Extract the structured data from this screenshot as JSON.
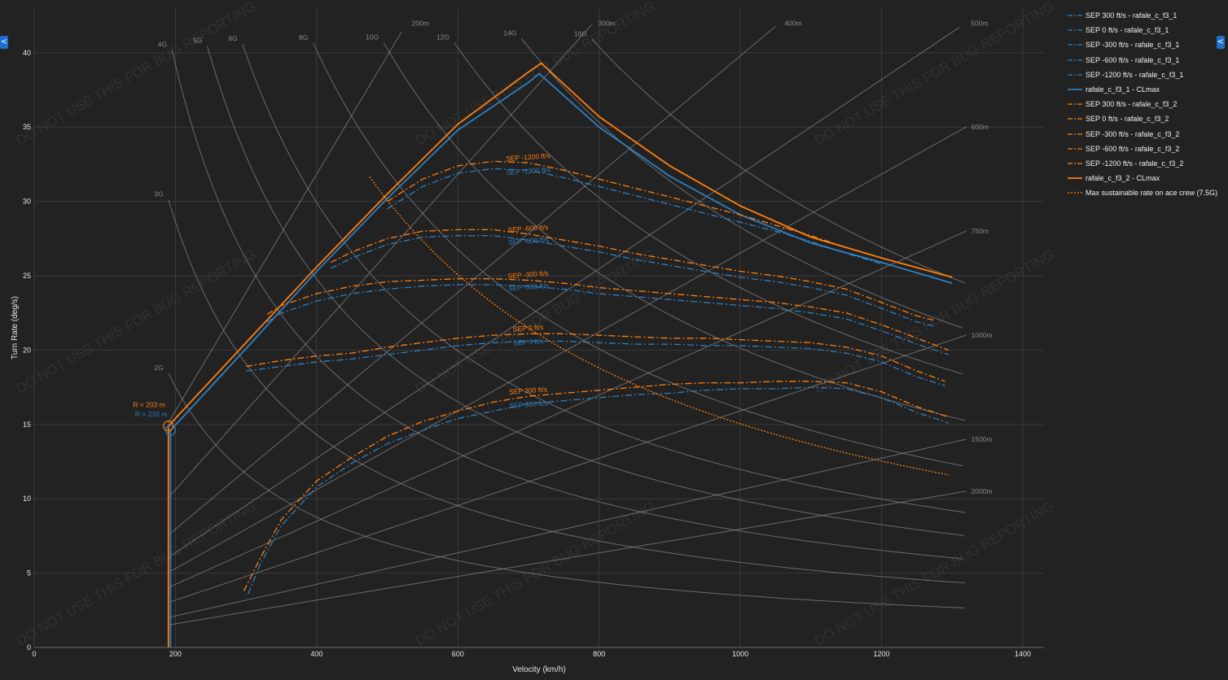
{
  "ui": {
    "left_collapse_glyph": "<",
    "right_collapse_glyph": "<",
    "left_collapse_icon": "chevron-left-icon",
    "right_collapse_icon": "chevron-left-icon",
    "watermark": "DO NOT USE THIS FOR BUG REPORTING"
  },
  "colors": {
    "background": "#222222",
    "grid": "#3a3a3a",
    "axis_text": "#e6e6e6",
    "reference": "#8a8a8a",
    "f3_1": "#2f7fc0",
    "f3_2": "#ff7f0e",
    "watermark": "rgba(255,255,255,0.07)"
  },
  "chart_data": {
    "type": "line",
    "xlabel": "Velocity (km/h)",
    "ylabel": "Turn Rate (deg/s)",
    "xlim": [
      0,
      1430
    ],
    "ylim": [
      0,
      43
    ],
    "xticks": [
      0,
      200,
      400,
      600,
      800,
      1000,
      1200,
      1400
    ],
    "yticks": [
      0,
      5,
      10,
      15,
      20,
      25,
      30,
      35,
      40
    ],
    "grid": true,
    "legend_position": "right",
    "g_lines": [
      {
        "label": "2G",
        "g": 2
      },
      {
        "label": "3G",
        "g": 3
      },
      {
        "label": "4G",
        "g": 4
      },
      {
        "label": "5G",
        "g": 5
      },
      {
        "label": "6G",
        "g": 6
      },
      {
        "label": "8G",
        "g": 8
      },
      {
        "label": "10G",
        "g": 10
      },
      {
        "label": "12G",
        "g": 12
      },
      {
        "label": "14G",
        "g": 14
      },
      {
        "label": "16G",
        "g": 16
      }
    ],
    "radius_lines": [
      {
        "label": "200m",
        "r": 200
      },
      {
        "label": "300m",
        "r": 300
      },
      {
        "label": "400m",
        "r": 400
      },
      {
        "label": "500m",
        "r": 500
      },
      {
        "label": "600m",
        "r": 600
      },
      {
        "label": "750m",
        "r": 750
      },
      {
        "label": "1000m",
        "r": 1000
      },
      {
        "label": "1500m",
        "r": 1500
      },
      {
        "label": "2000m",
        "r": 2000
      }
    ],
    "corner_markers": [
      {
        "label": "R = 203 m",
        "x": 190,
        "y": 14.9,
        "variant": "f3_2"
      },
      {
        "label": "R = 210 m",
        "x": 193,
        "y": 14.6,
        "variant": "f3_1"
      }
    ],
    "series": [
      {
        "name": "SEP 300 ft/s - rafale_c_f3_1",
        "variant": "f3_1",
        "dash": "dashdot",
        "label": "SEP 300 ft/s",
        "x": [
          303,
          320,
          350,
          400,
          450,
          500,
          550,
          600,
          650,
          700,
          750,
          800,
          850,
          900,
          950,
          1000,
          1050,
          1100,
          1150,
          1200,
          1250,
          1295
        ],
        "y": [
          3.6,
          5.6,
          8.2,
          10.8,
          12.4,
          13.7,
          14.6,
          15.4,
          15.9,
          16.4,
          16.6,
          16.8,
          17.0,
          17.1,
          17.3,
          17.4,
          17.4,
          17.5,
          17.4,
          16.8,
          15.8,
          15.1
        ]
      },
      {
        "name": "SEP 0 ft/s - rafale_c_f3_1",
        "variant": "f3_1",
        "dash": "dashdot",
        "label": "SEP 0 ft/s",
        "x": [
          300,
          350,
          400,
          450,
          500,
          550,
          600,
          650,
          700,
          750,
          800,
          850,
          900,
          950,
          1000,
          1050,
          1100,
          1150,
          1200,
          1250,
          1290
        ],
        "y": [
          18.6,
          18.9,
          19.2,
          19.4,
          19.7,
          20.0,
          20.3,
          20.5,
          20.6,
          20.6,
          20.5,
          20.4,
          20.4,
          20.3,
          20.3,
          20.2,
          20.1,
          19.8,
          19.2,
          18.2,
          17.6
        ]
      },
      {
        "name": "SEP -300 ft/s - rafale_c_f3_1",
        "variant": "f3_1",
        "dash": "dashdot",
        "label": "SEP -300 ft/s",
        "x": [
          330,
          350,
          400,
          450,
          500,
          550,
          600,
          650,
          700,
          750,
          800,
          850,
          900,
          950,
          1000,
          1050,
          1100,
          1150,
          1200,
          1250,
          1295
        ],
        "y": [
          21.9,
          22.5,
          23.3,
          23.8,
          24.1,
          24.3,
          24.4,
          24.4,
          24.3,
          24.1,
          23.8,
          23.6,
          23.4,
          23.2,
          23.0,
          22.8,
          22.5,
          22.1,
          21.3,
          20.4,
          19.7
        ]
      },
      {
        "name": "SEP -600 ft/s - rafale_c_f3_1",
        "variant": "f3_1",
        "dash": "dashdot",
        "label": "SEP -600 ft/s",
        "x": [
          420,
          450,
          500,
          550,
          600,
          650,
          700,
          750,
          800,
          850,
          900,
          950,
          1000,
          1050,
          1100,
          1150,
          1200,
          1250,
          1275
        ],
        "y": [
          25.5,
          26.2,
          27.1,
          27.6,
          27.7,
          27.7,
          27.4,
          27.0,
          26.6,
          26.1,
          25.7,
          25.3,
          24.9,
          24.6,
          24.2,
          23.7,
          22.8,
          21.9,
          21.6
        ]
      },
      {
        "name": "SEP -1200 ft/s - rafale_c_f3_1",
        "variant": "f3_1",
        "dash": "dashdot",
        "label": "SEP -1200 ft/s",
        "x": [
          500,
          550,
          600,
          650,
          700,
          750,
          800,
          850,
          900,
          950,
          1000,
          1050,
          1100,
          1150,
          1200
        ],
        "y": [
          29.5,
          31.0,
          31.9,
          32.2,
          32.1,
          31.6,
          31.0,
          30.4,
          29.8,
          29.2,
          28.6,
          28.0,
          27.3,
          26.5,
          25.8
        ]
      },
      {
        "name": "rafale_c_f3_1 - CLmax",
        "variant": "f3_1",
        "dash": "solid",
        "x": [
          193,
          193,
          300,
          400,
          500,
          600,
          700,
          715,
          800,
          900,
          1000,
          1100,
          1200,
          1300
        ],
        "y": [
          0,
          14.6,
          20.1,
          25.3,
          30.2,
          34.8,
          38.0,
          38.6,
          35.0,
          31.7,
          29.1,
          27.2,
          25.9,
          24.5
        ]
      },
      {
        "name": "SEP 300 ft/s - rafale_c_f3_2",
        "variant": "f3_2",
        "dash": "dashdot",
        "label": "SEP 300 ft/s",
        "x": [
          297,
          320,
          350,
          400,
          450,
          500,
          550,
          600,
          650,
          700,
          750,
          800,
          850,
          900,
          950,
          1000,
          1050,
          1100,
          1150,
          1200,
          1250,
          1295
        ],
        "y": [
          3.8,
          6.0,
          8.6,
          11.2,
          12.8,
          14.2,
          15.2,
          15.9,
          16.5,
          16.9,
          17.1,
          17.3,
          17.5,
          17.7,
          17.8,
          17.8,
          17.9,
          17.9,
          17.8,
          17.2,
          16.2,
          15.5
        ]
      },
      {
        "name": "SEP 0 ft/s - rafale_c_f3_2",
        "variant": "f3_2",
        "dash": "dashdot",
        "label": "SEP 0 ft/s",
        "x": [
          300,
          350,
          400,
          450,
          500,
          550,
          600,
          650,
          700,
          750,
          800,
          850,
          900,
          950,
          1000,
          1050,
          1100,
          1150,
          1200,
          1250,
          1290
        ],
        "y": [
          18.9,
          19.3,
          19.6,
          19.8,
          20.2,
          20.5,
          20.8,
          21.0,
          21.1,
          21.1,
          21.0,
          20.9,
          20.8,
          20.8,
          20.7,
          20.6,
          20.5,
          20.2,
          19.6,
          18.6,
          17.9
        ]
      },
      {
        "name": "SEP -300 ft/s - rafale_c_f3_2",
        "variant": "f3_2",
        "dash": "dashdot",
        "label": "SEP -300 ft/s",
        "x": [
          330,
          350,
          400,
          450,
          500,
          550,
          600,
          650,
          700,
          750,
          800,
          850,
          900,
          950,
          1000,
          1050,
          1100,
          1150,
          1200,
          1250,
          1295
        ],
        "y": [
          22.4,
          23.0,
          23.8,
          24.3,
          24.6,
          24.7,
          24.8,
          24.8,
          24.7,
          24.5,
          24.2,
          24.0,
          23.8,
          23.6,
          23.4,
          23.2,
          22.9,
          22.5,
          21.7,
          20.8,
          20.0
        ]
      },
      {
        "name": "SEP -600 ft/s - rafale_c_f3_2",
        "variant": "f3_2",
        "dash": "dashdot",
        "label": "SEP -600 ft/s",
        "x": [
          420,
          450,
          500,
          550,
          600,
          650,
          700,
          750,
          800,
          850,
          900,
          950,
          1000,
          1050,
          1100,
          1150,
          1200,
          1250,
          1275
        ],
        "y": [
          25.9,
          26.6,
          27.5,
          28.0,
          28.1,
          28.1,
          27.8,
          27.4,
          27.0,
          26.5,
          26.1,
          25.7,
          25.3,
          25.0,
          24.6,
          24.1,
          23.2,
          22.3,
          22.0
        ]
      },
      {
        "name": "SEP -1200 ft/s - rafale_c_f3_2",
        "variant": "f3_2",
        "dash": "dashdot",
        "label": "SEP -1200 ft/s",
        "x": [
          500,
          550,
          600,
          650,
          700,
          750,
          800,
          850,
          900,
          950,
          1000,
          1050,
          1100,
          1150,
          1200
        ],
        "y": [
          30.0,
          31.5,
          32.4,
          32.7,
          32.6,
          32.1,
          31.5,
          30.9,
          30.3,
          29.7,
          29.1,
          28.4,
          27.7,
          26.9,
          26.2
        ]
      },
      {
        "name": "rafale_c_f3_2 - CLmax",
        "variant": "f3_2",
        "dash": "solid",
        "x": [
          190,
          190,
          300,
          400,
          500,
          600,
          700,
          718,
          800,
          900,
          1000,
          1100,
          1200,
          1300
        ],
        "y": [
          0,
          14.9,
          20.5,
          25.6,
          30.5,
          35.2,
          38.7,
          39.3,
          35.7,
          32.4,
          29.7,
          27.6,
          26.2,
          24.9
        ]
      },
      {
        "name": "Max sustainable rate on ace crew (7.5G)",
        "variant": "f3_2",
        "dash": "dot",
        "g": 7.5,
        "x_range": [
          475,
          1300
        ]
      }
    ]
  }
}
